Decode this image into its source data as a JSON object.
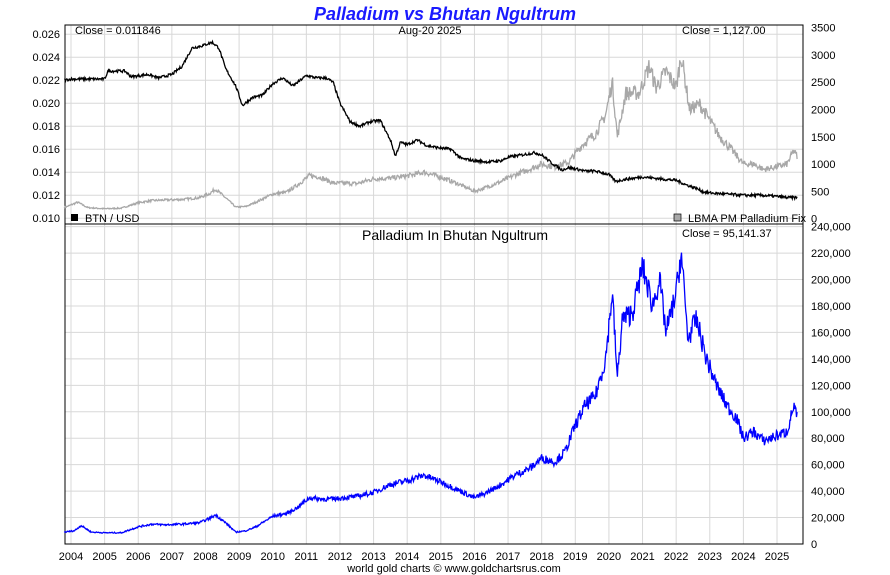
{
  "chart_data": [
    {
      "type": "line",
      "title": "Palladium vs Bhutan Ngultrum",
      "date_label": "Aug-20 2025",
      "left_close": "Close = 0.011846",
      "right_close": "Close = 1,127.00",
      "legend_left": "BTN / USD",
      "legend_right": "LBMA PM Palladium Fix",
      "x_ticks": [
        "2004",
        "2005",
        "2006",
        "2007",
        "2008",
        "2009",
        "2010",
        "2011",
        "2012",
        "2013",
        "2014",
        "2015",
        "2016",
        "2017",
        "2018",
        "2019",
        "2020",
        "2021",
        "2022",
        "2023",
        "2024",
        "2025"
      ],
      "y_left_ticks": [
        "0.010",
        "0.012",
        "0.014",
        "0.016",
        "0.018",
        "0.020",
        "0.022",
        "0.024",
        "0.026"
      ],
      "y_right_ticks": [
        "0",
        "500",
        "1000",
        "1500",
        "2000",
        "2500",
        "3000",
        "3500"
      ],
      "ylim_left": [
        0.0095,
        0.0268
      ],
      "ylim_right": [
        -100,
        3550
      ],
      "grid": true,
      "colors": {
        "btn": "#000000",
        "palladium": "#a8a8a8"
      },
      "series": [
        {
          "name": "BTN / USD",
          "axis": "left",
          "x": [
            2003.8,
            2004.0,
            2004.5,
            2005.0,
            2005.1,
            2005.6,
            2005.8,
            2006.3,
            2006.6,
            2007.0,
            2007.3,
            2007.6,
            2007.9,
            2008.2,
            2008.4,
            2008.6,
            2008.9,
            2009.1,
            2009.4,
            2009.7,
            2010.0,
            2010.3,
            2010.6,
            2011.0,
            2011.3,
            2011.6,
            2011.8,
            2012.0,
            2012.3,
            2012.6,
            2012.9,
            2013.2,
            2013.5,
            2013.65,
            2013.8,
            2014.0,
            2014.3,
            2014.6,
            2015.0,
            2015.3,
            2015.6,
            2016.0,
            2016.4,
            2016.8,
            2017.0,
            2017.4,
            2017.8,
            2018.0,
            2018.3,
            2018.6,
            2018.8,
            2019.0,
            2019.3,
            2019.6,
            2020.0,
            2020.2,
            2020.5,
            2020.8,
            2021.0,
            2021.3,
            2021.6,
            2022.0,
            2022.3,
            2022.6,
            2022.8,
            2023.0,
            2023.5,
            2024.0,
            2024.5,
            2025.0,
            2025.3,
            2025.6
          ],
          "y": [
            0.022,
            0.0221,
            0.0221,
            0.0221,
            0.0228,
            0.0228,
            0.0223,
            0.0225,
            0.0222,
            0.0225,
            0.0232,
            0.0248,
            0.025,
            0.0253,
            0.0248,
            0.023,
            0.0215,
            0.0198,
            0.0205,
            0.0207,
            0.0217,
            0.0222,
            0.0215,
            0.0224,
            0.0222,
            0.0222,
            0.0218,
            0.02,
            0.0184,
            0.018,
            0.0184,
            0.0185,
            0.0168,
            0.0154,
            0.0166,
            0.0164,
            0.0168,
            0.0163,
            0.0161,
            0.016,
            0.0152,
            0.015,
            0.0149,
            0.015,
            0.0153,
            0.0155,
            0.0157,
            0.0155,
            0.0148,
            0.0142,
            0.0144,
            0.0143,
            0.0141,
            0.0141,
            0.0138,
            0.0132,
            0.0134,
            0.0135,
            0.0136,
            0.0135,
            0.0134,
            0.0133,
            0.0129,
            0.0126,
            0.0123,
            0.0122,
            0.0121,
            0.012,
            0.012,
            0.0119,
            0.0118,
            0.0118
          ]
        },
        {
          "name": "LBMA PM Palladium Fix",
          "axis": "right",
          "x": [
            2003.8,
            2004.2,
            2004.5,
            2005.0,
            2005.5,
            2006.0,
            2006.4,
            2006.8,
            2007.3,
            2007.8,
            2008.1,
            2008.3,
            2008.6,
            2008.9,
            2009.2,
            2009.5,
            2010.0,
            2010.4,
            2010.7,
            2011.1,
            2011.4,
            2011.8,
            2012.1,
            2012.5,
            2013.0,
            2013.5,
            2014.0,
            2014.5,
            2015.0,
            2015.5,
            2016.0,
            2016.3,
            2016.8,
            2017.2,
            2017.7,
            2018.0,
            2018.4,
            2018.8,
            2019.2,
            2019.6,
            2019.9,
            2020.1,
            2020.25,
            2020.5,
            2020.9,
            2021.2,
            2021.4,
            2021.7,
            2022.0,
            2022.15,
            2022.4,
            2022.7,
            2023.0,
            2023.3,
            2023.6,
            2024.0,
            2024.3,
            2024.6,
            2025.0,
            2025.3,
            2025.5,
            2025.6
          ],
          "y": [
            200,
            300,
            200,
            180,
            190,
            290,
            330,
            340,
            350,
            380,
            450,
            540,
            380,
            210,
            220,
            300,
            450,
            480,
            600,
            790,
            760,
            650,
            650,
            640,
            730,
            740,
            780,
            850,
            760,
            640,
            500,
            560,
            680,
            800,
            920,
            1000,
            950,
            1030,
            1350,
            1550,
            1900,
            2500,
            1500,
            2300,
            2300,
            2800,
            2400,
            2700,
            2400,
            3000,
            2000,
            2100,
            1800,
            1500,
            1300,
            1000,
            1000,
            900,
            950,
            1000,
            1250,
            1127
          ]
        }
      ]
    },
    {
      "type": "line",
      "title": "Palladium In Bhutan Ngultrum",
      "close": "Close = 95,141.37",
      "footer": "world gold charts © www.goldchartsrus.com",
      "x_ticks": [
        "2004",
        "2005",
        "2006",
        "2007",
        "2008",
        "2009",
        "2010",
        "2011",
        "2012",
        "2013",
        "2014",
        "2015",
        "2016",
        "2017",
        "2018",
        "2019",
        "2020",
        "2021",
        "2022",
        "2023",
        "2024",
        "2025"
      ],
      "y_ticks": [
        "0",
        "20,000",
        "40,000",
        "60,000",
        "80,000",
        "100,000",
        "120,000",
        "140,000",
        "160,000",
        "180,000",
        "200,000",
        "220,000",
        "240,000"
      ],
      "ylim": [
        0,
        242000
      ],
      "grid": true,
      "colors": {
        "series": "#0000ff"
      },
      "series": [
        {
          "name": "",
          "x": [
            2003.8,
            2004.1,
            2004.3,
            2004.6,
            2005.0,
            2005.5,
            2006.0,
            2006.4,
            2006.8,
            2007.3,
            2007.8,
            2008.1,
            2008.3,
            2008.6,
            2008.9,
            2009.2,
            2009.5,
            2010.0,
            2010.4,
            2010.7,
            2011.1,
            2011.4,
            2011.8,
            2012.1,
            2012.5,
            2013.0,
            2013.5,
            2014.0,
            2014.5,
            2015.0,
            2015.5,
            2016.0,
            2016.3,
            2016.8,
            2017.2,
            2017.7,
            2018.0,
            2018.4,
            2018.7,
            2019.0,
            2019.3,
            2019.6,
            2019.9,
            2020.1,
            2020.25,
            2020.4,
            2020.7,
            2021.0,
            2021.3,
            2021.5,
            2021.7,
            2022.0,
            2022.15,
            2022.35,
            2022.6,
            2022.9,
            2023.2,
            2023.5,
            2023.8,
            2024.0,
            2024.3,
            2024.6,
            2025.0,
            2025.3,
            2025.5,
            2025.6
          ],
          "y": [
            9000,
            10000,
            14000,
            9000,
            8500,
            8500,
            13000,
            15000,
            14500,
            15000,
            16000,
            19000,
            22000,
            16000,
            9000,
            10000,
            13000,
            21000,
            23000,
            27000,
            35000,
            34000,
            34000,
            35000,
            36000,
            39000,
            45000,
            48000,
            52000,
            47000,
            41000,
            35000,
            38000,
            45000,
            52000,
            58000,
            65000,
            62000,
            70000,
            90000,
            105000,
            112000,
            140000,
            190000,
            125000,
            170000,
            175000,
            210000,
            180000,
            200000,
            160000,
            190000,
            220000,
            155000,
            170000,
            140000,
            120000,
            105000,
            95000,
            80000,
            85000,
            78000,
            82000,
            85000,
            105000,
            95141
          ]
        }
      ]
    }
  ]
}
